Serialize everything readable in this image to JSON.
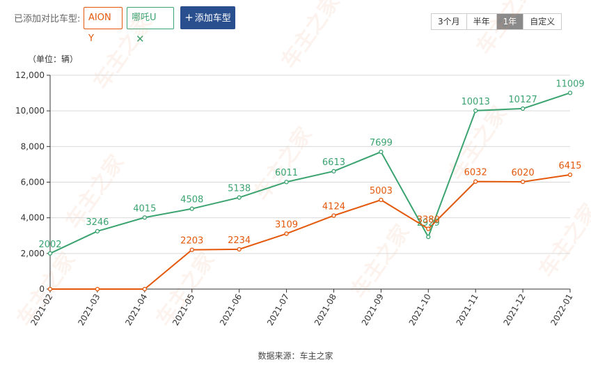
{
  "toolbar": {
    "compare_label": "已添加对比车型:",
    "tags": [
      {
        "label": "AION Y",
        "color": "#e4580b"
      },
      {
        "label": "哪吒U",
        "color": "#3aa36f",
        "close_icon": "close-icon"
      }
    ],
    "add_button": {
      "icon": "plus-icon",
      "label": "添加车型"
    },
    "ranges": [
      "3个月",
      "半年",
      "1年",
      "自定义"
    ],
    "active_range": "1年"
  },
  "unit_label": "（单位：辆）",
  "source": "数据来源：车主之家",
  "watermark": "车主之家",
  "chart_data": {
    "type": "line",
    "categories": [
      "2021-02",
      "2021-03",
      "2021-04",
      "2021-05",
      "2021-06",
      "2021-07",
      "2021-08",
      "2021-09",
      "2021-10",
      "2021-11",
      "2021-12",
      "2022-01"
    ],
    "ylim": [
      0,
      12000
    ],
    "yticks": [
      "0",
      "2,000",
      "4,000",
      "6,000",
      "8,000",
      "10,000",
      "12,000"
    ],
    "ytick_values": [
      0,
      2000,
      4000,
      6000,
      8000,
      10000,
      12000
    ],
    "grid": true,
    "series": [
      {
        "name": "哪吒U",
        "color": "#3aa36f",
        "values": [
          2002,
          3246,
          4015,
          4508,
          5138,
          6011,
          6613,
          7699,
          2929,
          10013,
          10127,
          11009
        ],
        "labels": [
          "2002",
          "3246",
          "4015",
          "4508",
          "5138",
          "6011",
          "6613",
          "7699",
          "2929",
          "10013",
          "10127",
          "11009"
        ]
      },
      {
        "name": "AION Y",
        "color": "#e4580b",
        "values": [
          0,
          0,
          0,
          2203,
          2234,
          3109,
          4124,
          5003,
          3380,
          6032,
          6020,
          6415
        ],
        "labels": [
          "",
          "",
          "",
          "2203",
          "2234",
          "3109",
          "4124",
          "5003",
          "3380",
          "6032",
          "6020",
          "6415"
        ]
      }
    ]
  }
}
